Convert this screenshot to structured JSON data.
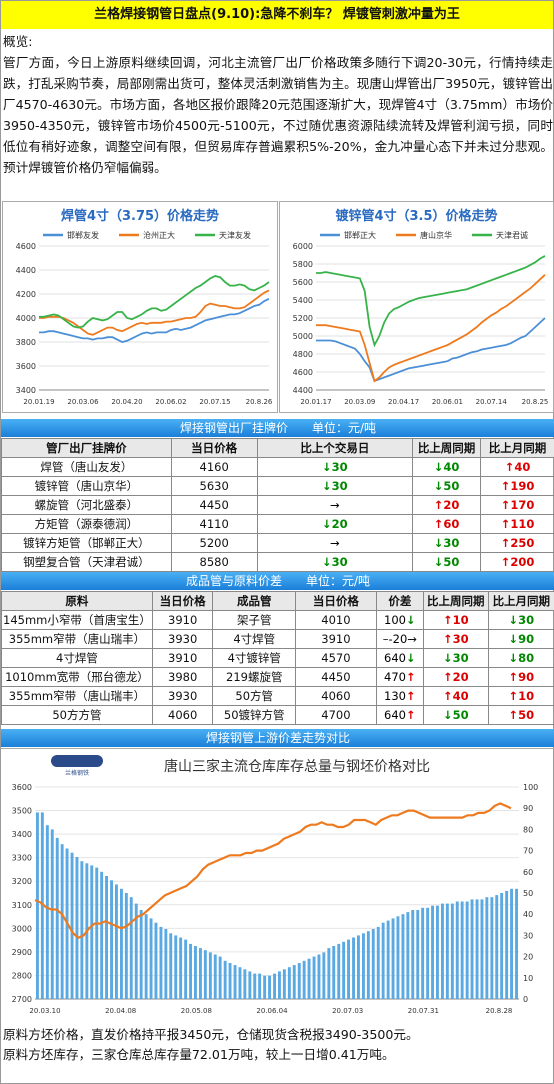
{
  "title": "兰格焊接钢管日盘点(9.10):急降不刹车？ 焊镀管刺激冲量为王",
  "overview": {
    "heading": "概览:",
    "text": "管厂方面，今日上游原料继续回调，河北主流管厂出厂价格政策多随行下调20-30元，行情持续走跌，打乱采购节奏，局部刚需出货可，整体灵活刺激销售为主。现唐山焊管出厂3950元，镀锌管出厂4570-4630元。市场方面，各地区报价跟降20元范围逐渐扩大，现焊管4寸（3.75mm）市场价3950-4350元，镀锌管市场价4500元-5100元，不过随优惠资源陆续流转及焊管利润亏损，同时低位有稍好迹象，调整空间有限，但贸易库存普遍累积5%-20%，金九冲量心态下并未过分悲观。预计焊镀管价格仍窄幅偏弱。"
  },
  "colors": {
    "blue": "#4b8fd6",
    "orange": "#ee7a1f",
    "green": "#37b34a",
    "up": "#dd0000",
    "down": "#008800"
  },
  "chart_data": [
    {
      "type": "line",
      "title": "焊管4寸（3.75）价格走势",
      "x_ticks": [
        "20.01.19",
        "20.03.06",
        "20.04.20",
        "20.06.02",
        "20.07.15",
        "20.8.26"
      ],
      "ylim": [
        3400,
        4600
      ],
      "y_ticks": [
        3400,
        3600,
        3800,
        4000,
        4200,
        4400,
        4600
      ],
      "series": [
        {
          "name": "邯郸友发",
          "color": "#4b8fd6",
          "values": [
            3880,
            3880,
            3890,
            3890,
            3880,
            3870,
            3860,
            3850,
            3840,
            3830,
            3830,
            3820,
            3830,
            3830,
            3840,
            3840,
            3820,
            3800,
            3810,
            3830,
            3850,
            3870,
            3880,
            3870,
            3880,
            3880,
            3880,
            3900,
            3910,
            3900,
            3910,
            3920,
            3940,
            3960,
            3980,
            3990,
            4000,
            4010,
            4020,
            4030,
            4030,
            4040,
            4060,
            4080,
            4100,
            4110,
            4140,
            4160
          ]
        },
        {
          "name": "沧州正大",
          "color": "#ee7a1f",
          "values": [
            4000,
            4000,
            4010,
            4010,
            4010,
            4000,
            3980,
            3960,
            3930,
            3900,
            3870,
            3860,
            3880,
            3900,
            3920,
            3920,
            3900,
            3890,
            3910,
            3930,
            3950,
            3960,
            3950,
            3960,
            3960,
            3960,
            3970,
            3970,
            3980,
            3990,
            4000,
            4000,
            4010,
            4050,
            4100,
            4120,
            4110,
            4100,
            4100,
            4090,
            4080,
            4080,
            4090,
            4120,
            4150,
            4180,
            4210,
            4230
          ]
        },
        {
          "name": "天津友发",
          "color": "#37b34a",
          "values": [
            4010,
            4010,
            4020,
            4030,
            4020,
            3990,
            3960,
            3930,
            3920,
            3930,
            3970,
            4000,
            3990,
            3980,
            3990,
            4020,
            4050,
            4050,
            4000,
            3990,
            4010,
            4030,
            4060,
            4080,
            4080,
            4060,
            4070,
            4100,
            4130,
            4160,
            4190,
            4220,
            4250,
            4270,
            4300,
            4330,
            4350,
            4340,
            4300,
            4270,
            4270,
            4280,
            4270,
            4240,
            4230,
            4250,
            4270,
            4300
          ]
        }
      ]
    },
    {
      "type": "line",
      "title": "镀锌管4寸（3.5）价格走势",
      "x_ticks": [
        "20.01.17",
        "20.03.09",
        "20.04.17",
        "20.06.01",
        "20.07.14",
        "20.8.25"
      ],
      "ylim": [
        4400,
        6000
      ],
      "y_ticks": [
        4400,
        4600,
        4800,
        5000,
        5200,
        5400,
        5600,
        5800,
        6000
      ],
      "series": [
        {
          "name": "邯郸正大",
          "color": "#4b8fd6",
          "values": [
            4950,
            4950,
            4950,
            4950,
            4940,
            4920,
            4900,
            4880,
            4860,
            4800,
            4720,
            4650,
            4500,
            4520,
            4540,
            4560,
            4580,
            4600,
            4620,
            4640,
            4650,
            4660,
            4670,
            4680,
            4690,
            4700,
            4710,
            4720,
            4750,
            4760,
            4780,
            4800,
            4820,
            4830,
            4850,
            4860,
            4870,
            4880,
            4890,
            4900,
            4920,
            4950,
            4980,
            5000,
            5050,
            5100,
            5150,
            5200
          ]
        },
        {
          "name": "唐山京华",
          "color": "#ee7a1f",
          "values": [
            5120,
            5120,
            5120,
            5110,
            5100,
            5090,
            5080,
            5070,
            5060,
            5050,
            4900,
            4700,
            4500,
            4540,
            4600,
            4650,
            4680,
            4700,
            4720,
            4740,
            4760,
            4780,
            4800,
            4820,
            4840,
            4860,
            4880,
            4900,
            4930,
            4960,
            4990,
            5020,
            5060,
            5100,
            5150,
            5190,
            5230,
            5260,
            5300,
            5330,
            5370,
            5410,
            5450,
            5490,
            5530,
            5580,
            5630,
            5680
          ]
        },
        {
          "name": "天津君诚",
          "color": "#37b34a",
          "values": [
            5700,
            5700,
            5710,
            5700,
            5690,
            5680,
            5670,
            5660,
            5650,
            5640,
            5500,
            5100,
            4900,
            5000,
            5150,
            5250,
            5300,
            5320,
            5350,
            5380,
            5400,
            5420,
            5430,
            5440,
            5450,
            5460,
            5470,
            5480,
            5490,
            5500,
            5510,
            5520,
            5540,
            5560,
            5580,
            5600,
            5620,
            5640,
            5660,
            5680,
            5700,
            5720,
            5740,
            5760,
            5790,
            5820,
            5860,
            5890
          ]
        }
      ]
    },
    {
      "type": "bar",
      "title": "唐山三家主流仓库库存总量与钢坯价格对比",
      "x_ticks": [
        "20.03.10",
        "20.04.08",
        "20.05.08",
        "20.06.04",
        "20.07.03",
        "20.07.31",
        "20.8.28"
      ],
      "ylim_left": [
        2700,
        3600
      ],
      "y_ticks_left": [
        2700,
        2800,
        2900,
        3000,
        3100,
        3200,
        3300,
        3400,
        3500,
        3600
      ],
      "ylim_right": [
        0,
        100
      ],
      "y_ticks_right": [
        0,
        10,
        20,
        30,
        40,
        50,
        60,
        70,
        80,
        90,
        100
      ],
      "series": [
        {
          "name": "库存",
          "type": "bar",
          "color": "#5aa9e2",
          "axis": "right",
          "values": [
            88,
            88,
            82,
            80,
            76,
            73,
            71,
            69,
            67,
            65,
            64,
            63,
            62,
            60,
            58,
            56,
            54,
            52,
            50,
            48,
            45,
            42,
            40,
            38,
            36,
            34,
            33,
            31,
            30,
            29,
            28,
            26,
            25,
            24,
            23,
            22,
            21,
            20,
            18,
            17,
            16,
            15,
            14,
            13,
            12,
            12,
            11,
            11,
            12,
            13,
            14,
            15,
            16,
            17,
            18,
            19,
            20,
            21,
            22,
            24,
            25,
            26,
            27,
            28,
            29,
            30,
            31,
            32,
            33,
            34,
            36,
            37,
            38,
            39,
            40,
            41,
            42,
            42,
            43,
            43,
            44,
            44,
            45,
            45,
            45,
            46,
            46,
            46,
            47,
            47,
            47,
            48,
            48,
            49,
            50,
            51,
            52,
            52
          ]
        },
        {
          "name": "钢坯价格",
          "type": "line",
          "color": "#ee7a1f",
          "axis": "left",
          "values": [
            3120,
            3110,
            3090,
            3080,
            3080,
            3060,
            3020,
            2980,
            2960,
            2970,
            3000,
            3020,
            3020,
            3030,
            3020,
            3010,
            3000,
            3010,
            3030,
            3050,
            3060,
            3080,
            3100,
            3120,
            3140,
            3150,
            3160,
            3170,
            3180,
            3200,
            3220,
            3250,
            3270,
            3280,
            3290,
            3300,
            3310,
            3310,
            3310,
            3320,
            3320,
            3330,
            3330,
            3340,
            3350,
            3360,
            3380,
            3390,
            3400,
            3410,
            3430,
            3440,
            3440,
            3450,
            3440,
            3440,
            3430,
            3430,
            3440,
            3460,
            3460,
            3460,
            3450,
            3440,
            3460,
            3470,
            3480,
            3480,
            3490,
            3500,
            3500,
            3490,
            3480,
            3470,
            3470,
            3470,
            3470,
            3470,
            3470,
            3470,
            3480,
            3480,
            3490,
            3490,
            3500,
            3520,
            3530,
            3520,
            3510
          ]
        }
      ]
    }
  ],
  "sections": {
    "factory": "焊接钢管出厂挂牌价　　单位：元/吨",
    "raw": "成品管与原料价差　　单位：元/吨",
    "inventory": "焊接钢管上游价差走势对比"
  },
  "factory_table": {
    "headers": [
      "管厂出厂挂牌价",
      "当日价格",
      "比上个交易日",
      "比上周同期",
      "比上月同期"
    ],
    "rows": [
      {
        "name": "焊管（唐山友发）",
        "price": "4160",
        "d1": "30",
        "d1dir": "down",
        "d2": "40",
        "d2dir": "down",
        "d3": "40",
        "d3dir": "up"
      },
      {
        "name": "镀锌管（唐山京华）",
        "price": "5630",
        "d1": "30",
        "d1dir": "down",
        "d2": "50",
        "d2dir": "down",
        "d3": "190",
        "d3dir": "up"
      },
      {
        "name": "螺旋管（河北盛泰）",
        "price": "4450",
        "d1": "→",
        "d1dir": "flat",
        "d2": "20",
        "d2dir": "up",
        "d3": "170",
        "d3dir": "up"
      },
      {
        "name": "方矩管（源泰德润）",
        "price": "4110",
        "d1": "20",
        "d1dir": "down",
        "d2": "60",
        "d2dir": "up",
        "d3": "110",
        "d3dir": "up"
      },
      {
        "name": "镀锌方矩管（邯郸正大）",
        "price": "5200",
        "d1": "→",
        "d1dir": "flat",
        "d2": "30",
        "d2dir": "down",
        "d3": "250",
        "d3dir": "up"
      },
      {
        "name": "钢塑复合管（天津君诚）",
        "price": "8580",
        "d1": "30",
        "d1dir": "down",
        "d2": "50",
        "d2dir": "down",
        "d3": "200",
        "d3dir": "up"
      }
    ]
  },
  "raw_table": {
    "headers": [
      "原料",
      "当日价格",
      "成品管",
      "当日价格",
      "价差",
      "比上周同期",
      "比上月同期"
    ],
    "rows": [
      {
        "raw": "145mm小窄带（首唐宝生）",
        "rp": "3910",
        "pipe": "架子管",
        "pp": "4010",
        "diff": "100",
        "diffdir": "down",
        "w": "10",
        "wdir": "up",
        "m": "30",
        "mdir": "down"
      },
      {
        "raw": "355mm窄带（唐山瑞丰）",
        "rp": "3930",
        "pipe": "4寸焊管",
        "pp": "3910",
        "diff": "-20",
        "diffdir": "flat",
        "w": "30",
        "wdir": "up",
        "m": "90",
        "mdir": "down"
      },
      {
        "raw": "4寸焊管",
        "rp": "3910",
        "pipe": "4寸镀锌管",
        "pp": "4570",
        "diff": "640",
        "diffdir": "down",
        "w": "30",
        "wdir": "down",
        "m": "80",
        "mdir": "down"
      },
      {
        "raw": "1010mm宽带（邢台德龙）",
        "rp": "3980",
        "pipe": "219螺旋管",
        "pp": "4450",
        "diff": "470",
        "diffdir": "up",
        "w": "20",
        "wdir": "up",
        "m": "90",
        "mdir": "up"
      },
      {
        "raw": "355mm窄带（唐山瑞丰）",
        "rp": "3930",
        "pipe": "50方管",
        "pp": "4060",
        "diff": "130",
        "diffdir": "up",
        "w": "40",
        "wdir": "up",
        "m": "10",
        "mdir": "up"
      },
      {
        "raw": "50方方管",
        "rp": "4060",
        "pipe": "50镀锌方管",
        "pp": "4700",
        "diff": "640",
        "diffdir": "up",
        "w": "50",
        "wdir": "down",
        "m": "50",
        "mdir": "up"
      }
    ]
  },
  "logo_text": "兰格钢铁",
  "footer": {
    "line1": "原料方坯价格，直发价格持平报3450元，仓储现货含税报3490-3500元。",
    "line2": "原料方坯库存，三家仓库总库存量72.01万吨，较上一日增0.41万吨。"
  }
}
